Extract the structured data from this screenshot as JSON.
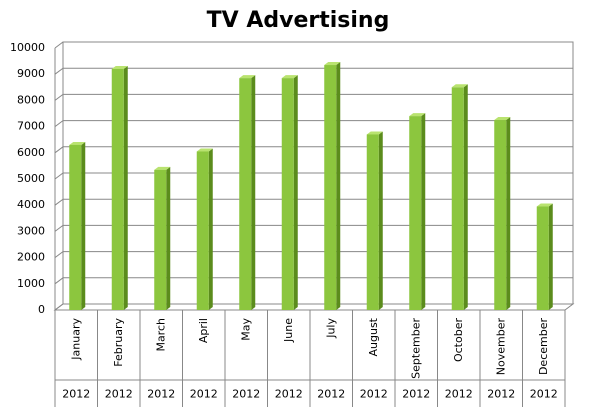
{
  "chart_data": {
    "type": "bar3d",
    "title": "TV Advertising",
    "categories": [
      "January",
      "February",
      "March",
      "April",
      "May",
      "June",
      "July",
      "August",
      "September",
      "October",
      "November",
      "December"
    ],
    "group_labels": [
      "2012",
      "2012",
      "2012",
      "2012",
      "2012",
      "2012",
      "2012",
      "2012",
      "2012",
      "2012",
      "2012",
      "2012"
    ],
    "values": [
      6300,
      9200,
      5350,
      6050,
      8850,
      8850,
      9350,
      6700,
      7400,
      8500,
      7250,
      3950
    ],
    "color": "#8cc63e",
    "ylim": [
      0,
      10000
    ],
    "yticks": [
      0,
      1000,
      2000,
      3000,
      4000,
      5000,
      6000,
      7000,
      8000,
      9000,
      10000
    ],
    "grid": true
  }
}
